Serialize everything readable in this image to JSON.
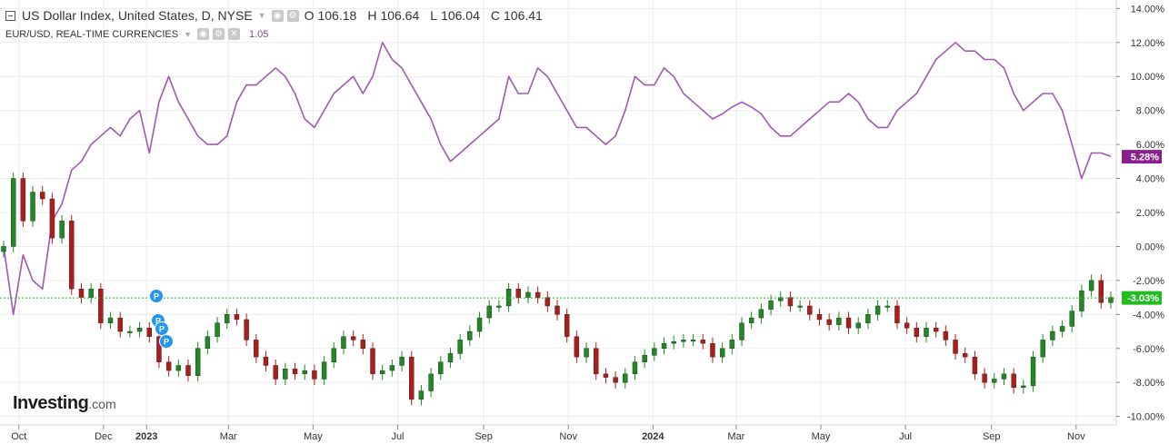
{
  "legend": {
    "main_title": "US Dollar Index, United States, D, NYSE",
    "ohlc": [
      {
        "label": "O",
        "value": "106.18"
      },
      {
        "label": "H",
        "value": "106.64"
      },
      {
        "label": "L",
        "value": "106.04"
      },
      {
        "label": "C",
        "value": "106.41"
      }
    ],
    "sub_title": "EUR/USD, REAL-TIME CURRENCIES",
    "sub_value": "1.05"
  },
  "logo": {
    "main": "Investing",
    "suffix": ".com"
  },
  "colors": {
    "candle_up": "#1f8a24",
    "candle_down": "#b01c1c",
    "compare_line": "#a058b0",
    "current_line": "#22bb22",
    "badge_purple": "#8a1f8e",
    "badge_green": "#22bb22",
    "marker": "#2196f3",
    "grid": "#ececec"
  },
  "chart_data": {
    "type": "line",
    "y_unit": "%",
    "ylim": [
      -10.5,
      14.5
    ],
    "y_ticks": [
      "14.00%",
      "12.00%",
      "10.00%",
      "8.00%",
      "6.00%",
      "4.00%",
      "2.00%",
      "0.00%",
      "-2.00%",
      "-4.00%",
      "-6.00%",
      "-8.00%",
      "-10.00%"
    ],
    "x_ticks": [
      "Oct",
      "Dec",
      "2023",
      "Mar",
      "May",
      "Jul",
      "Sep",
      "Nov",
      "2024",
      "Mar",
      "May",
      "Jul",
      "Sep",
      "Nov"
    ],
    "grid": true,
    "series": [
      {
        "name": "US Dollar Index",
        "style": "candlestick",
        "x": [
          "2022-09-20",
          "2022-09-27",
          "2022-10-04",
          "2022-10-11",
          "2022-10-18",
          "2022-10-25",
          "2022-11-01",
          "2022-11-08",
          "2022-11-15",
          "2022-11-22",
          "2022-11-29",
          "2022-12-06",
          "2022-12-13",
          "2022-12-20",
          "2022-12-27",
          "2023-01-03",
          "2023-01-10",
          "2023-01-17",
          "2023-01-24",
          "2023-01-31",
          "2023-02-07",
          "2023-02-14",
          "2023-02-21",
          "2023-02-28",
          "2023-03-07",
          "2023-03-14",
          "2023-03-21",
          "2023-03-28",
          "2023-04-04",
          "2023-04-11",
          "2023-04-18",
          "2023-04-25",
          "2023-05-02",
          "2023-05-09",
          "2023-05-16",
          "2023-05-23",
          "2023-05-30",
          "2023-06-06",
          "2023-06-13",
          "2023-06-20",
          "2023-06-27",
          "2023-07-04",
          "2023-07-11",
          "2023-07-18",
          "2023-07-25",
          "2023-08-01",
          "2023-08-08",
          "2023-08-15",
          "2023-08-22",
          "2023-08-29",
          "2023-09-05",
          "2023-09-12",
          "2023-09-19",
          "2023-09-26",
          "2023-10-03",
          "2023-10-10",
          "2023-10-17",
          "2023-10-24",
          "2023-10-31",
          "2023-11-07",
          "2023-11-14",
          "2023-11-21",
          "2023-11-28",
          "2023-12-05",
          "2023-12-12",
          "2023-12-19",
          "2023-12-26",
          "2024-01-02",
          "2024-01-09",
          "2024-01-16",
          "2024-01-23",
          "2024-01-30",
          "2024-02-06",
          "2024-02-13",
          "2024-02-20",
          "2024-02-27",
          "2024-03-05",
          "2024-03-12",
          "2024-03-19",
          "2024-03-26",
          "2024-04-02",
          "2024-04-09",
          "2024-04-16",
          "2024-04-23",
          "2024-04-30",
          "2024-05-07",
          "2024-05-14",
          "2024-05-21",
          "2024-05-28",
          "2024-06-04",
          "2024-06-11",
          "2024-06-18",
          "2024-06-25",
          "2024-07-02",
          "2024-07-09",
          "2024-07-16",
          "2024-07-23",
          "2024-07-30",
          "2024-08-06",
          "2024-08-13",
          "2024-08-20",
          "2024-08-27",
          "2024-09-03",
          "2024-09-10",
          "2024-09-17",
          "2024-09-24",
          "2024-10-01",
          "2024-10-08",
          "2024-10-15",
          "2024-10-22",
          "2024-10-29",
          "2024-11-05",
          "2024-11-12",
          "2024-11-19",
          "2024-11-26"
        ],
        "y": [
          0.0,
          4.0,
          1.5,
          3.2,
          2.8,
          0.5,
          1.5,
          -2.5,
          -3.0,
          -2.5,
          -4.5,
          -4.2,
          -5.0,
          -5.0,
          -4.8,
          -5.3,
          -6.8,
          -7.3,
          -7.0,
          -7.6,
          -6.0,
          -5.3,
          -4.5,
          -4.0,
          -4.3,
          -5.5,
          -6.5,
          -7.0,
          -7.8,
          -7.2,
          -7.5,
          -7.3,
          -7.8,
          -6.8,
          -6.0,
          -5.3,
          -5.5,
          -6.0,
          -7.5,
          -7.3,
          -7.0,
          -6.5,
          -9.0,
          -8.5,
          -7.5,
          -6.8,
          -6.3,
          -5.5,
          -5.0,
          -4.2,
          -3.5,
          -3.5,
          -2.5,
          -3.0,
          -2.7,
          -3.0,
          -3.5,
          -4.0,
          -5.3,
          -6.5,
          -6.0,
          -7.5,
          -7.7,
          -8.0,
          -7.5,
          -6.8,
          -6.4,
          -6.0,
          -5.7,
          -5.6,
          -5.5,
          -5.5,
          -5.7,
          -6.5,
          -6.0,
          -5.5,
          -4.5,
          -4.2,
          -3.7,
          -3.2,
          -3.0,
          -3.5,
          -3.5,
          -4.0,
          -4.3,
          -4.6,
          -4.2,
          -4.8,
          -4.5,
          -4.0,
          -3.5,
          -3.5,
          -4.5,
          -4.8,
          -5.3,
          -4.8,
          -5.0,
          -5.5,
          -6.3,
          -6.5,
          -7.5,
          -8.0,
          -7.8,
          -7.5,
          -8.3,
          -8.2,
          -6.5,
          -5.5,
          -5.0,
          -4.7,
          -3.8,
          -2.6,
          -2.0,
          -3.3,
          -3.0
        ],
        "last_value_label": "-3.03%"
      },
      {
        "name": "EUR/USD",
        "style": "line",
        "x": [
          "2022-09-20",
          "2022-09-27",
          "2022-10-04",
          "2022-10-11",
          "2022-10-18",
          "2022-10-25",
          "2022-11-01",
          "2022-11-08",
          "2022-11-15",
          "2022-11-22",
          "2022-11-29",
          "2022-12-06",
          "2022-12-13",
          "2022-12-20",
          "2022-12-27",
          "2023-01-03",
          "2023-01-10",
          "2023-01-17",
          "2023-01-24",
          "2023-01-31",
          "2023-02-07",
          "2023-02-14",
          "2023-02-21",
          "2023-02-28",
          "2023-03-07",
          "2023-03-14",
          "2023-03-21",
          "2023-03-28",
          "2023-04-04",
          "2023-04-11",
          "2023-04-18",
          "2023-04-25",
          "2023-05-02",
          "2023-05-09",
          "2023-05-16",
          "2023-05-23",
          "2023-05-30",
          "2023-06-06",
          "2023-06-13",
          "2023-06-20",
          "2023-06-27",
          "2023-07-04",
          "2023-07-11",
          "2023-07-18",
          "2023-07-25",
          "2023-08-01",
          "2023-08-08",
          "2023-08-15",
          "2023-08-22",
          "2023-08-29",
          "2023-09-05",
          "2023-09-12",
          "2023-09-19",
          "2023-09-26",
          "2023-10-03",
          "2023-10-10",
          "2023-10-17",
          "2023-10-24",
          "2023-10-31",
          "2023-11-07",
          "2023-11-14",
          "2023-11-21",
          "2023-11-28",
          "2023-12-05",
          "2023-12-12",
          "2023-12-19",
          "2023-12-26",
          "2024-01-02",
          "2024-01-09",
          "2024-01-16",
          "2024-01-23",
          "2024-01-30",
          "2024-02-06",
          "2024-02-13",
          "2024-02-20",
          "2024-02-27",
          "2024-03-05",
          "2024-03-12",
          "2024-03-19",
          "2024-03-26",
          "2024-04-02",
          "2024-04-09",
          "2024-04-16",
          "2024-04-23",
          "2024-04-30",
          "2024-05-07",
          "2024-05-14",
          "2024-05-21",
          "2024-05-28",
          "2024-06-04",
          "2024-06-11",
          "2024-06-18",
          "2024-06-25",
          "2024-07-02",
          "2024-07-09",
          "2024-07-16",
          "2024-07-23",
          "2024-07-30",
          "2024-08-06",
          "2024-08-13",
          "2024-08-20",
          "2024-08-27",
          "2024-09-03",
          "2024-09-10",
          "2024-09-17",
          "2024-09-24",
          "2024-10-01",
          "2024-10-08",
          "2024-10-15",
          "2024-10-22",
          "2024-10-29",
          "2024-11-05",
          "2024-11-12",
          "2024-11-19",
          "2024-11-26"
        ],
        "y": [
          0.0,
          -4.0,
          -0.5,
          -2.0,
          -2.5,
          1.5,
          2.5,
          4.5,
          5.0,
          6.0,
          6.5,
          7.0,
          6.5,
          7.5,
          8.0,
          5.5,
          8.5,
          10.0,
          8.5,
          7.5,
          6.5,
          6.0,
          6.0,
          6.5,
          8.5,
          9.5,
          9.5,
          10.0,
          10.5,
          10.0,
          9.0,
          7.5,
          7.0,
          8.0,
          9.0,
          9.5,
          10.0,
          9.0,
          10.0,
          12.0,
          11.0,
          10.5,
          9.5,
          8.5,
          7.5,
          6.0,
          5.0,
          5.5,
          6.0,
          6.5,
          7.0,
          7.5,
          10.0,
          9.0,
          9.0,
          10.5,
          10.0,
          9.0,
          8.0,
          7.0,
          7.0,
          6.5,
          6.0,
          6.5,
          8.0,
          10.0,
          9.5,
          9.5,
          10.5,
          10.0,
          9.0,
          8.5,
          8.0,
          7.5,
          7.8,
          8.2,
          8.5,
          8.2,
          7.8,
          7.0,
          6.5,
          6.5,
          7.0,
          7.5,
          8.0,
          8.5,
          8.5,
          9.0,
          8.5,
          7.5,
          7.0,
          7.0,
          8.0,
          8.5,
          9.0,
          10.0,
          11.0,
          11.5,
          12.0,
          11.5,
          11.5,
          11.0,
          11.0,
          10.5,
          9.0,
          8.0,
          8.5,
          9.0,
          9.0,
          8.0,
          6.0,
          4.0,
          5.5,
          5.5,
          5.3
        ],
        "last_value_label": "5.28%"
      }
    ],
    "markers": [
      "P",
      "P",
      "P",
      "P"
    ]
  }
}
